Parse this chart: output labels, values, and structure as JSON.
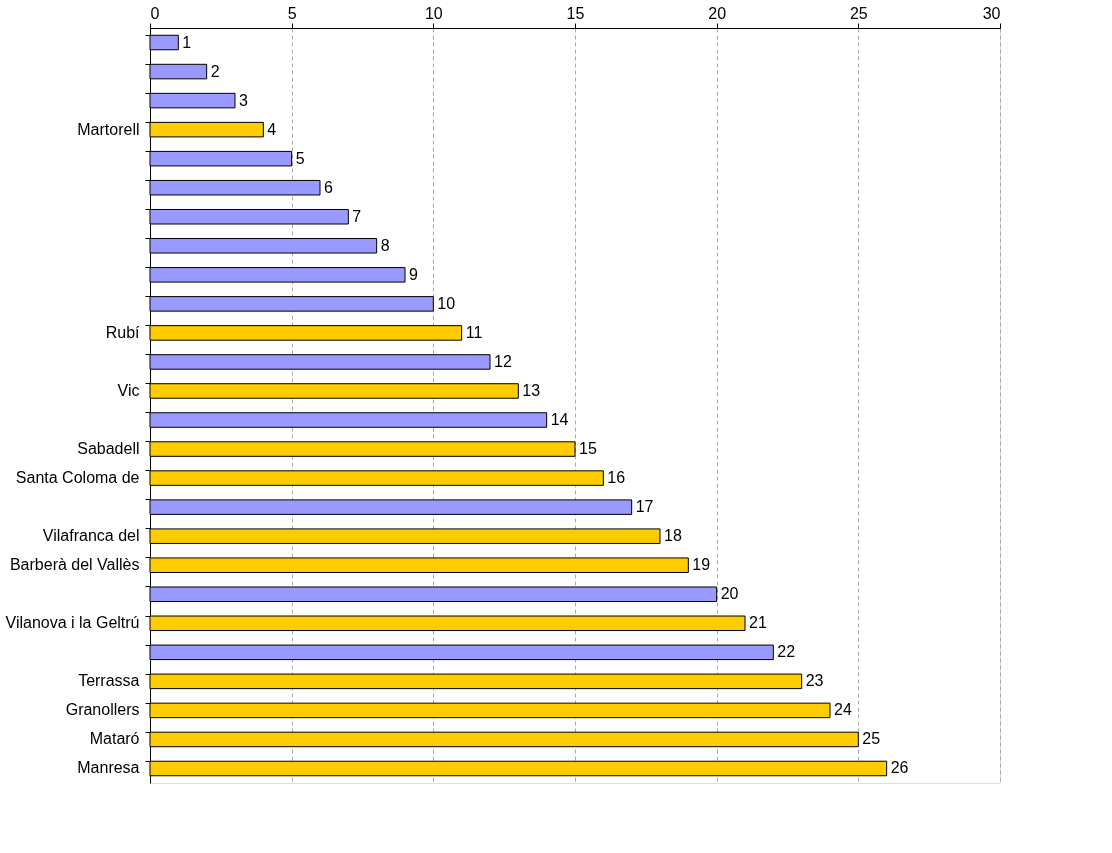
{
  "chart_data": {
    "type": "bar",
    "orientation": "horizontal",
    "categories": [
      null,
      null,
      null,
      "Martorell",
      null,
      null,
      null,
      null,
      null,
      null,
      "Rubí",
      null,
      "Vic",
      null,
      "Sabadell",
      "Santa Coloma de",
      null,
      "Vilafranca del",
      "Barberà del Vallès",
      null,
      "Vilanova i la Geltrú",
      null,
      "Terrassa",
      "Granollers",
      "Mataró",
      "Manresa"
    ],
    "values": [
      1,
      2,
      3,
      4,
      5,
      6,
      7,
      8,
      9,
      10,
      11,
      12,
      13,
      14,
      15,
      16,
      17,
      18,
      19,
      20,
      21,
      22,
      23,
      24,
      25,
      26
    ],
    "colors": [
      "#9999ff",
      "#9999ff",
      "#9999ff",
      "#ffcc00",
      "#9999ff",
      "#9999ff",
      "#9999ff",
      "#9999ff",
      "#9999ff",
      "#9999ff",
      "#ffcc00",
      "#9999ff",
      "#ffcc00",
      "#9999ff",
      "#ffcc00",
      "#ffcc00",
      "#9999ff",
      "#ffcc00",
      "#ffcc00",
      "#9999ff",
      "#ffcc00",
      "#9999ff",
      "#ffcc00",
      "#ffcc00",
      "#ffcc00",
      "#ffcc00"
    ],
    "xlim": [
      0,
      30
    ],
    "xticks": [
      0,
      5,
      10,
      15,
      20,
      25,
      30
    ],
    "grid": "x",
    "data_labels": true
  }
}
